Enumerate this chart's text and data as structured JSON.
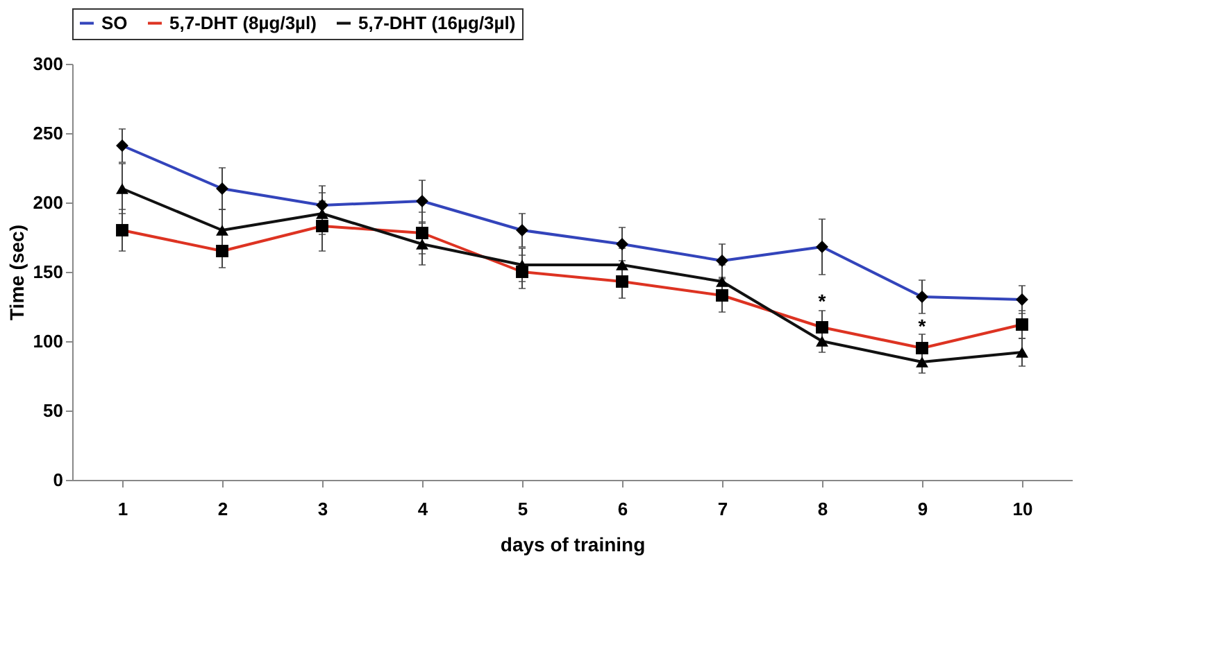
{
  "chart_data": {
    "type": "line",
    "xlabel": "days of training",
    "ylabel": "Time (sec)",
    "categories": [
      "1",
      "2",
      "3",
      "4",
      "5",
      "6",
      "7",
      "8",
      "9",
      "10"
    ],
    "series": [
      {
        "name": "SO",
        "color": "#3344bb",
        "marker": "diamond",
        "values": [
          241,
          210,
          198,
          201,
          180,
          170,
          158,
          168,
          132,
          130
        ],
        "errors": [
          12,
          15,
          14,
          15,
          12,
          12,
          12,
          20,
          12,
          10
        ]
      },
      {
        "name": "5,7-DHT (8µg/3µl)",
        "color": "#dd3322",
        "marker": "square",
        "values": [
          180,
          165,
          183,
          178,
          150,
          143,
          133,
          110,
          95,
          112
        ],
        "errors": [
          15,
          12,
          18,
          15,
          12,
          12,
          12,
          12,
          10,
          10
        ]
      },
      {
        "name": "5,7-DHT (16µg/3µl)",
        "color": "#111111",
        "marker": "triangle",
        "values": [
          210,
          180,
          192,
          170,
          155,
          155,
          143,
          100,
          85,
          92
        ],
        "errors": [
          18,
          15,
          15,
          15,
          12,
          12,
          12,
          8,
          8,
          10
        ]
      }
    ],
    "annotations": [
      {
        "text": "*",
        "x": "8",
        "y": 128
      },
      {
        "text": "*",
        "x": "9",
        "y": 110
      }
    ],
    "ylim": [
      0,
      300
    ],
    "yticks": [
      0,
      50,
      100,
      150,
      200,
      250,
      300
    ],
    "grid": false,
    "legend": "top",
    "line_style": "solid"
  }
}
